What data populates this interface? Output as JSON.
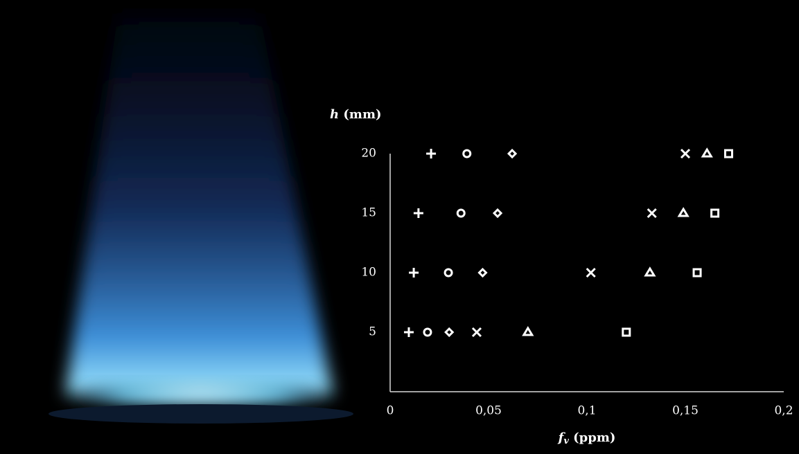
{
  "chart_data": {
    "type": "scatter",
    "xlabel": {
      "symbol": "f",
      "subscript": "v",
      "unit": "(ppm)"
    },
    "ylabel": {
      "symbol": "h",
      "unit": "(mm)"
    },
    "xlim": [
      0,
      0.2
    ],
    "xticks": [
      0,
      {
        "value": 0.05,
        "label": "0,05"
      },
      {
        "value": 0.1,
        "label": "0,1"
      },
      {
        "value": 0.15,
        "label": "0,15"
      },
      {
        "value": 0.2,
        "label": "0,2"
      }
    ],
    "ylim": [
      0,
      20
    ],
    "yticks": [
      5,
      10,
      15,
      20
    ],
    "series": [
      {
        "marker": "plus",
        "color": "#ffffff",
        "x": [
          0.0208,
          0.0144,
          0.012,
          0.0095
        ],
        "values": [
          20,
          15,
          10,
          5
        ]
      },
      {
        "marker": "circle",
        "color": "#ffffff",
        "x": [
          0.039,
          0.036,
          0.0296,
          0.019
        ],
        "values": [
          20,
          15,
          10,
          5
        ]
      },
      {
        "marker": "diamond",
        "color": "#ffffff",
        "x": [
          0.062,
          0.0546,
          0.047,
          0.03
        ],
        "values": [
          20,
          15,
          10,
          5
        ]
      },
      {
        "marker": "cross",
        "color": "#ffffff",
        "x": [
          0.15,
          0.133,
          0.102,
          0.044
        ],
        "values": [
          20,
          15,
          10,
          5
        ]
      },
      {
        "marker": "triangle",
        "color": "#ffffff",
        "x": [
          0.161,
          0.149,
          0.132,
          0.07
        ],
        "values": [
          20,
          15,
          10,
          5
        ]
      },
      {
        "marker": "square",
        "color": "#ffffff",
        "x": [
          0.172,
          0.165,
          0.156,
          0.12
        ],
        "values": [
          20,
          15,
          10,
          5
        ]
      }
    ]
  }
}
